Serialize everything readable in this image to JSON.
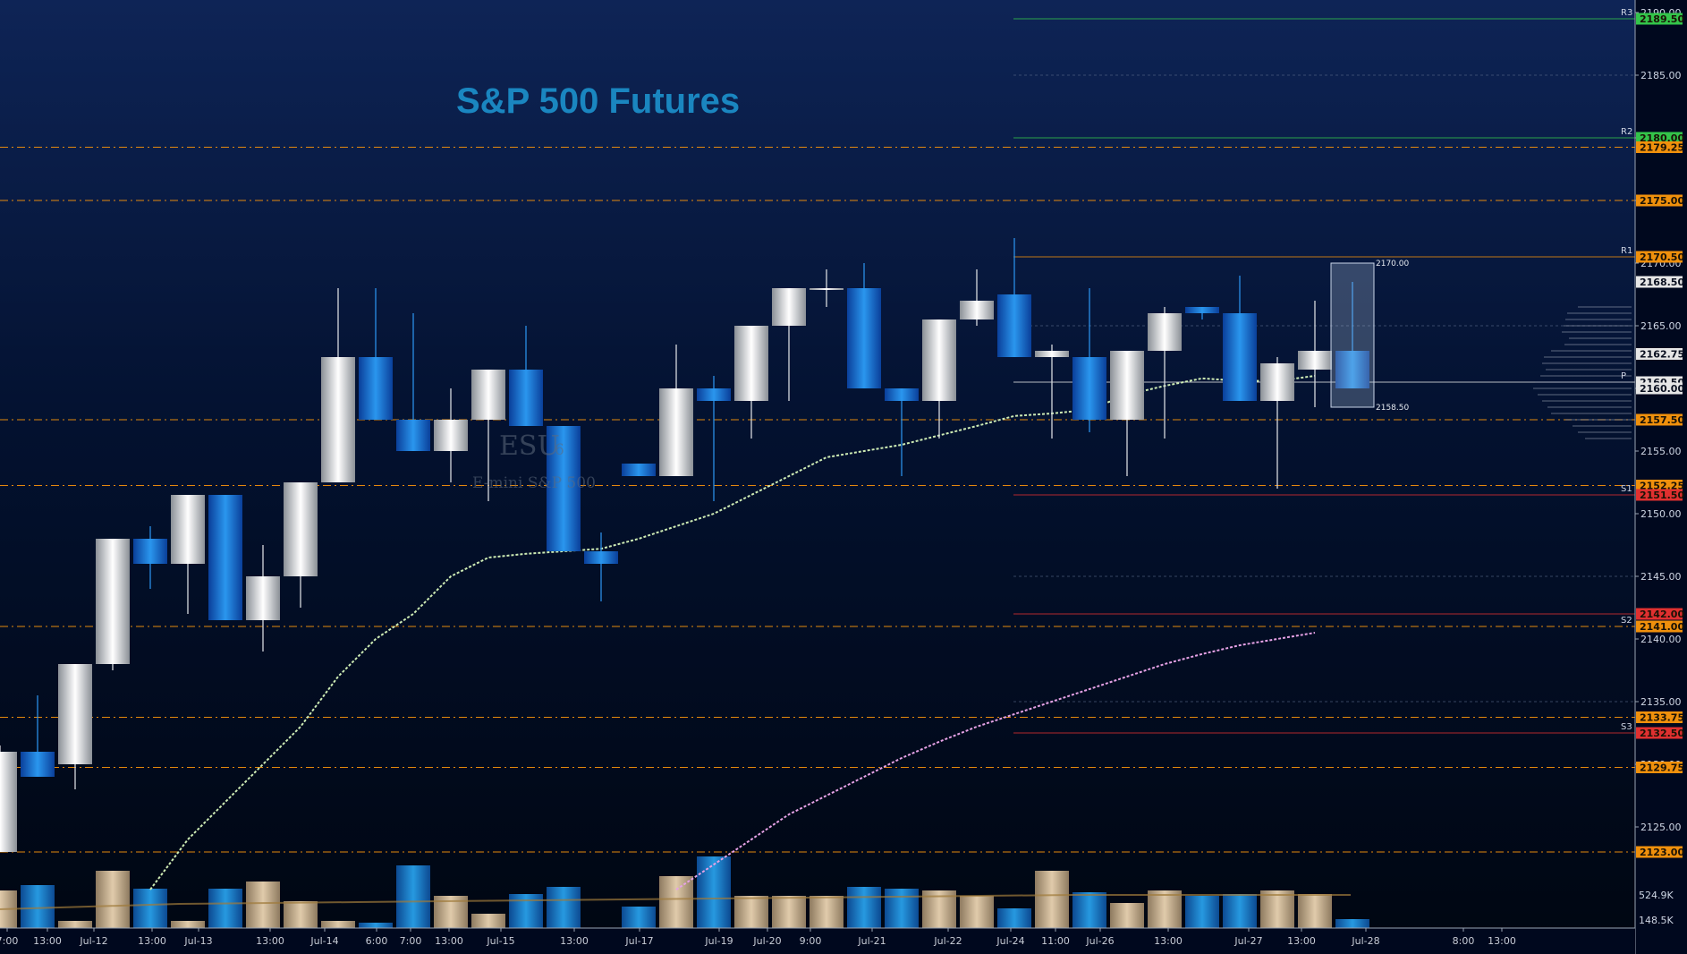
{
  "chart_data": {
    "type": "candlestick",
    "title": "S&P 500 Futures",
    "watermark": {
      "symbol": "ESU",
      "suffix": "6",
      "name": "E-mini S&P 500"
    },
    "ylim": [
      2120,
      2190
    ],
    "y_ticks": [
      2125,
      2130,
      2135,
      2140,
      2145,
      2150,
      2155,
      2160,
      2165,
      2170,
      2175,
      2180,
      2185,
      2190
    ],
    "x_labels": [
      "7:00",
      "13:00",
      "Jul-12",
      "13:00",
      "Jul-13",
      "13:00",
      "Jul-14",
      "6:00",
      "7:00",
      "13:00",
      "Jul-15",
      "13:00",
      "Jul-17",
      "Jul-19",
      "Jul-20",
      "9:00",
      "Jul-21",
      "Jul-22",
      "Jul-24",
      "11:00",
      "Jul-26",
      "13:00",
      "Jul-27",
      "13:00",
      "Jul-28",
      "8:00",
      "13:00"
    ],
    "candles": [
      {
        "o": 2131.0,
        "h": 2131.5,
        "l": 2123.0,
        "c": 2123.0,
        "up": true
      },
      {
        "o": 2131.0,
        "h": 2135.5,
        "l": 2129.0,
        "c": 2129.0,
        "up": false
      },
      {
        "o": 2130.0,
        "h": 2138.0,
        "l": 2128.0,
        "c": 2138.0,
        "up": true
      },
      {
        "o": 2138.0,
        "h": 2148.0,
        "l": 2137.5,
        "c": 2148.0,
        "up": true
      },
      {
        "o": 2148.0,
        "h": 2149.0,
        "l": 2144.0,
        "c": 2146.0,
        "up": false
      },
      {
        "o": 2146.0,
        "h": 2151.5,
        "l": 2142.0,
        "c": 2151.5,
        "up": true
      },
      {
        "o": 2151.5,
        "h": 2151.5,
        "l": 2141.5,
        "c": 2141.5,
        "up": false
      },
      {
        "o": 2141.5,
        "h": 2147.5,
        "l": 2139.0,
        "c": 2145.0,
        "up": true
      },
      {
        "o": 2145.0,
        "h": 2152.5,
        "l": 2142.5,
        "c": 2152.5,
        "up": true
      },
      {
        "o": 2152.5,
        "h": 2168.0,
        "l": 2152.5,
        "c": 2162.5,
        "up": true
      },
      {
        "o": 2162.5,
        "h": 2168.0,
        "l": 2157.5,
        "c": 2157.5,
        "up": false
      },
      {
        "o": 2157.5,
        "h": 2166.0,
        "l": 2155.0,
        "c": 2155.0,
        "up": false
      },
      {
        "o": 2155.0,
        "h": 2160.0,
        "l": 2152.5,
        "c": 2157.5,
        "up": true
      },
      {
        "o": 2157.5,
        "h": 2161.5,
        "l": 2151.0,
        "c": 2161.5,
        "up": true
      },
      {
        "o": 2161.5,
        "h": 2165.0,
        "l": 2157.0,
        "c": 2157.0,
        "up": false
      },
      {
        "o": 2157.0,
        "h": 2157.0,
        "l": 2147.0,
        "c": 2147.0,
        "up": false
      },
      {
        "o": 2147.0,
        "h": 2148.5,
        "l": 2143.0,
        "c": 2146.0,
        "up": false
      },
      {
        "o": 2154.0,
        "h": 2154.0,
        "l": 2153.0,
        "c": 2153.0,
        "up": false
      },
      {
        "o": 2153.0,
        "h": 2163.5,
        "l": 2153.0,
        "c": 2160.0,
        "up": true
      },
      {
        "o": 2160.0,
        "h": 2161.0,
        "l": 2151.0,
        "c": 2159.0,
        "up": false
      },
      {
        "o": 2159.0,
        "h": 2165.0,
        "l": 2156.0,
        "c": 2165.0,
        "up": true
      },
      {
        "o": 2165.0,
        "h": 2168.0,
        "l": 2159.0,
        "c": 2168.0,
        "up": true
      },
      {
        "o": 2168.0,
        "h": 2169.5,
        "l": 2166.5,
        "c": 2168.0,
        "up": true
      },
      {
        "o": 2168.0,
        "h": 2170.0,
        "l": 2160.0,
        "c": 2160.0,
        "up": false
      },
      {
        "o": 2160.0,
        "h": 2160.0,
        "l": 2153.0,
        "c": 2159.0,
        "up": false
      },
      {
        "o": 2159.0,
        "h": 2165.5,
        "l": 2156.0,
        "c": 2165.5,
        "up": true
      },
      {
        "o": 2165.5,
        "h": 2169.5,
        "l": 2165.0,
        "c": 2167.0,
        "up": true
      },
      {
        "o": 2167.5,
        "h": 2172.0,
        "l": 2162.5,
        "c": 2162.5,
        "up": false
      },
      {
        "o": 2162.5,
        "h": 2163.5,
        "l": 2156.0,
        "c": 2163.0,
        "up": true
      },
      {
        "o": 2162.5,
        "h": 2168.0,
        "l": 2156.5,
        "c": 2157.5,
        "up": false
      },
      {
        "o": 2157.5,
        "h": 2163.0,
        "l": 2153.0,
        "c": 2163.0,
        "up": true
      },
      {
        "o": 2163.0,
        "h": 2166.5,
        "l": 2156.0,
        "c": 2166.0,
        "up": true
      },
      {
        "o": 2166.5,
        "h": 2166.5,
        "l": 2165.5,
        "c": 2166.0,
        "up": false
      },
      {
        "o": 2166.0,
        "h": 2169.0,
        "l": 2159.0,
        "c": 2159.0,
        "up": false
      },
      {
        "o": 2159.0,
        "h": 2162.5,
        "l": 2152.0,
        "c": 2162.0,
        "up": true
      },
      {
        "o": 2161.5,
        "h": 2167.0,
        "l": 2158.5,
        "c": 2163.0,
        "up": true
      },
      {
        "o": 2163.0,
        "h": 2168.5,
        "l": 2160.0,
        "c": 2160.0,
        "up": false
      }
    ],
    "volume_labels": [
      "524.9K",
      "148.5K"
    ],
    "levels": [
      {
        "label": "2189.50",
        "price": 2189.5,
        "color": "#33c44a",
        "line": "solid",
        "marker": "R3"
      },
      {
        "label": "2180.00",
        "price": 2180.0,
        "color": "#33c44a",
        "line": "solid",
        "marker": "R2"
      },
      {
        "label": "2179.25",
        "price": 2179.25,
        "color": "#f0900c",
        "line": "dashdot",
        "marker": ""
      },
      {
        "label": "2175.00",
        "price": 2175.0,
        "color": "#f0900c",
        "line": "dashdot",
        "marker": ""
      },
      {
        "label": "2170.50",
        "price": 2170.5,
        "color": "#f0900c",
        "line": "solid",
        "marker": "R1"
      },
      {
        "label": "2168.50",
        "price": 2168.5,
        "color": "#e6e6e6",
        "line": "none",
        "marker": ""
      },
      {
        "label": "2162.75",
        "price": 2162.75,
        "color": "#e6e6e6",
        "line": "none",
        "marker": ""
      },
      {
        "label": "2160.50",
        "price": 2160.5,
        "color": "#e6e6e6",
        "line": "solid",
        "marker": "P"
      },
      {
        "label": "2160.00",
        "price": 2160.0,
        "color": "#e6e6e6",
        "line": "none",
        "marker": ""
      },
      {
        "label": "2157.50",
        "price": 2157.5,
        "color": "#f0900c",
        "line": "dashdot",
        "marker": ""
      },
      {
        "label": "2152.25",
        "price": 2152.25,
        "color": "#f0900c",
        "line": "dashdot",
        "marker": ""
      },
      {
        "label": "2151.50",
        "price": 2151.5,
        "color": "#e03030",
        "line": "solid",
        "marker": "S1"
      },
      {
        "label": "2142.00",
        "price": 2142.0,
        "color": "#e03030",
        "line": "solid",
        "marker": ""
      },
      {
        "label": "2141.00",
        "price": 2141.0,
        "color": "#f0900c",
        "line": "dashdot",
        "marker": "S2"
      },
      {
        "label": "2133.75",
        "price": 2133.75,
        "color": "#f0900c",
        "line": "dashdot",
        "marker": ""
      },
      {
        "label": "2132.50",
        "price": 2132.5,
        "color": "#e03030",
        "line": "solid",
        "marker": "S3"
      },
      {
        "label": "2129.75",
        "price": 2129.75,
        "color": "#f0900c",
        "line": "dashdot",
        "marker": ""
      },
      {
        "label": "2123.00",
        "price": 2123.0,
        "color": "#f0900c",
        "line": "dashdot",
        "marker": ""
      }
    ],
    "annotations": [
      {
        "text": "2170.00",
        "price": 2170.0
      },
      {
        "text": "2158.50",
        "price": 2158.5
      }
    ],
    "ma_short": [
      [
        4,
        2120
      ],
      [
        5,
        2124
      ],
      [
        6,
        2127
      ],
      [
        7,
        2130
      ],
      [
        8,
        2133
      ],
      [
        9,
        2137
      ],
      [
        10,
        2140
      ],
      [
        11,
        2142
      ],
      [
        12,
        2145
      ],
      [
        13,
        2146.5
      ],
      [
        14,
        2146.8
      ],
      [
        15,
        2147
      ],
      [
        16,
        2147.2
      ],
      [
        17,
        2148
      ],
      [
        18,
        2149
      ],
      [
        19,
        2150
      ],
      [
        20,
        2151.5
      ],
      [
        21,
        2153
      ],
      [
        22,
        2154.5
      ],
      [
        23,
        2155
      ],
      [
        24,
        2155.5
      ],
      [
        26,
        2157
      ],
      [
        27,
        2157.8
      ],
      [
        28,
        2158
      ],
      [
        29,
        2158.3
      ],
      [
        30,
        2159.5
      ],
      [
        31,
        2160.2
      ],
      [
        32,
        2160.8
      ],
      [
        33,
        2160.6
      ],
      [
        34,
        2160.6
      ],
      [
        35,
        2161
      ]
    ],
    "ma_long": [
      [
        18,
        2120
      ],
      [
        19,
        2122
      ],
      [
        20,
        2124
      ],
      [
        21,
        2126
      ],
      [
        22,
        2127.5
      ],
      [
        23,
        2129
      ],
      [
        24,
        2130.5
      ],
      [
        25,
        2131.8
      ],
      [
        26,
        2133
      ],
      [
        27,
        2134
      ],
      [
        28,
        2135
      ],
      [
        29,
        2136
      ],
      [
        30,
        2137
      ],
      [
        31,
        2138
      ],
      [
        32,
        2138.8
      ],
      [
        33,
        2139.5
      ],
      [
        35,
        2140.5
      ]
    ]
  }
}
